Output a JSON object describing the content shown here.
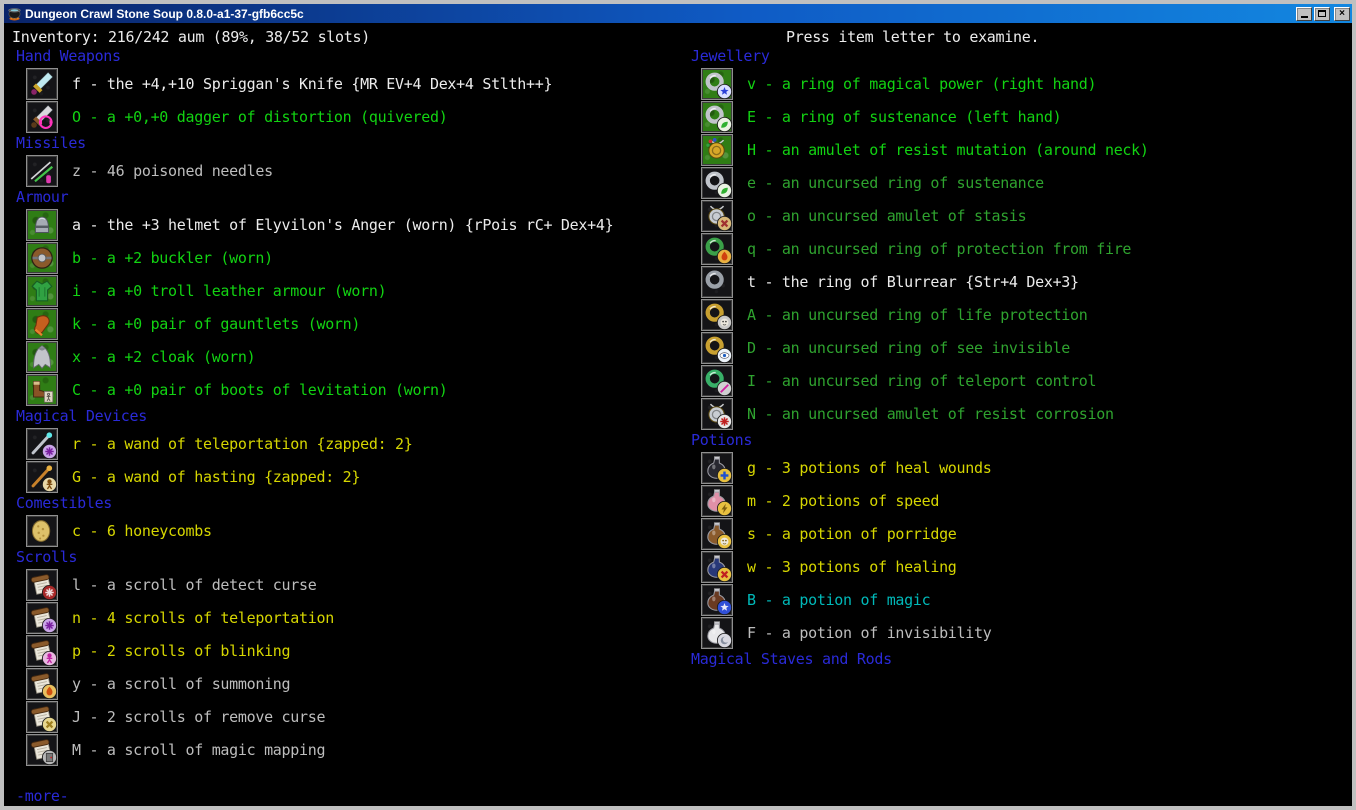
{
  "window": {
    "title": "Dungeon Crawl Stone Soup 0.8.0-a1-37-gfb6cc5c",
    "controls": {
      "minimize": "minimize",
      "maximize": "maximize",
      "close_glyph": "×"
    }
  },
  "statusbar": {
    "left": "Inventory: 216/242 aum (89%, 38/52 slots)",
    "right": "Press item letter to examine."
  },
  "palette": {
    "blue": "#2a2ad8",
    "white": "#ececec",
    "lightgrey": "#bdbdbd",
    "lightgreen": "#12d312",
    "green": "#2fa32f",
    "yellow": "#d6d600",
    "cyan": "#00b9b9",
    "titlebar_left": "#0a246a",
    "titlebar_right": "#1287e0",
    "equipped_tile_bg": "#2f7d15"
  },
  "columns": [
    {
      "sections": [
        {
          "header": "Hand Weapons",
          "items": [
            {
              "letter": "f",
              "text": "f - the +4,+10 Spriggan's Knife {MR EV+4 Dex+4 Stlth++}",
              "color": "white",
              "equipped": false,
              "icon": "spriggan_knife"
            },
            {
              "letter": "O",
              "text": "O - a +0,+0 dagger of distortion (quivered)",
              "color": "lightgreen",
              "equipped": false,
              "icon": "dagger_distortion"
            }
          ]
        },
        {
          "header": "Missiles",
          "items": [
            {
              "letter": "z",
              "text": "z - 46 poisoned needles",
              "color": "lightgrey",
              "equipped": false,
              "icon": "needles"
            }
          ]
        },
        {
          "header": "Armour",
          "items": [
            {
              "letter": "a",
              "text": "a - the +3 helmet of Elyvilon's Anger (worn) {rPois rC+ Dex+4}",
              "color": "white",
              "equipped": true,
              "icon": "helmet"
            },
            {
              "letter": "b",
              "text": "b - a +2 buckler (worn)",
              "color": "lightgreen",
              "equipped": true,
              "icon": "buckler"
            },
            {
              "letter": "i",
              "text": "i - a +0 troll leather armour (worn)",
              "color": "lightgreen",
              "equipped": true,
              "icon": "troll_armour"
            },
            {
              "letter": "k",
              "text": "k - a +0 pair of gauntlets (worn)",
              "color": "lightgreen",
              "equipped": true,
              "icon": "gauntlets"
            },
            {
              "letter": "x",
              "text": "x - a +2 cloak (worn)",
              "color": "lightgreen",
              "equipped": true,
              "icon": "cloak"
            },
            {
              "letter": "C",
              "text": "C - a +0 pair of boots of levitation (worn)",
              "color": "lightgreen",
              "equipped": true,
              "icon": "boots"
            }
          ]
        },
        {
          "header": "Magical Devices",
          "items": [
            {
              "letter": "r",
              "text": "r - a wand of teleportation {zapped: 2}",
              "color": "yellow",
              "equipped": false,
              "icon": "wand_teleport"
            },
            {
              "letter": "G",
              "text": "G - a wand of hasting {zapped: 2}",
              "color": "yellow",
              "equipped": false,
              "icon": "wand_hasting"
            }
          ]
        },
        {
          "header": "Comestibles",
          "items": [
            {
              "letter": "c",
              "text": "c - 6 honeycombs",
              "color": "yellow",
              "equipped": false,
              "icon": "honeycomb"
            }
          ]
        },
        {
          "header": "Scrolls",
          "items": [
            {
              "letter": "l",
              "text": "l - a scroll of detect curse",
              "color": "lightgrey",
              "equipped": false,
              "icon": "scroll_detect_curse"
            },
            {
              "letter": "n",
              "text": "n - 4 scrolls of teleportation",
              "color": "yellow",
              "equipped": false,
              "icon": "scroll_teleport"
            },
            {
              "letter": "p",
              "text": "p - 2 scrolls of blinking",
              "color": "yellow",
              "equipped": false,
              "icon": "scroll_blinking"
            },
            {
              "letter": "y",
              "text": "y - a scroll of summoning",
              "color": "lightgrey",
              "equipped": false,
              "icon": "scroll_summoning"
            },
            {
              "letter": "J",
              "text": "J - 2 scrolls of remove curse",
              "color": "lightgrey",
              "equipped": false,
              "icon": "scroll_remove_curse"
            },
            {
              "letter": "M",
              "text": "M - a scroll of magic mapping",
              "color": "lightgrey",
              "equipped": false,
              "icon": "scroll_magic_mapping"
            }
          ]
        }
      ],
      "footer": "-more-"
    },
    {
      "sections": [
        {
          "header": "Jewellery",
          "items": [
            {
              "letter": "v",
              "text": "v - a ring of magical power (right hand)",
              "color": "lightgreen",
              "equipped": true,
              "icon": "ring_magical_power"
            },
            {
              "letter": "E",
              "text": "E - a ring of sustenance (left hand)",
              "color": "lightgreen",
              "equipped": true,
              "icon": "ring_sustenance"
            },
            {
              "letter": "H",
              "text": "H - an amulet of resist mutation (around neck)",
              "color": "lightgreen",
              "equipped": true,
              "icon": "amulet_resist_mutation"
            },
            {
              "letter": "e",
              "text": "e - an uncursed ring of sustenance",
              "color": "green",
              "equipped": false,
              "icon": "ring_sustenance"
            },
            {
              "letter": "o",
              "text": "o - an uncursed amulet of stasis",
              "color": "green",
              "equipped": false,
              "icon": "amulet_stasis"
            },
            {
              "letter": "q",
              "text": "q - an uncursed ring of protection from fire",
              "color": "green",
              "equipped": false,
              "icon": "ring_fire"
            },
            {
              "letter": "t",
              "text": "t - the ring of Blurrear {Str+4 Dex+3}",
              "color": "white",
              "equipped": false,
              "icon": "ring_blurrear"
            },
            {
              "letter": "A",
              "text": "A - an uncursed ring of life protection",
              "color": "green",
              "equipped": false,
              "icon": "ring_life_protection"
            },
            {
              "letter": "D",
              "text": "D - an uncursed ring of see invisible",
              "color": "green",
              "equipped": false,
              "icon": "ring_see_invisible"
            },
            {
              "letter": "I",
              "text": "I - an uncursed ring of teleport control",
              "color": "green",
              "equipped": false,
              "icon": "ring_teleport_control"
            },
            {
              "letter": "N",
              "text": "N - an uncursed amulet of resist corrosion",
              "color": "green",
              "equipped": false,
              "icon": "amulet_resist_corrosion"
            }
          ]
        },
        {
          "header": "Potions",
          "items": [
            {
              "letter": "g",
              "text": "g - 3 potions of heal wounds",
              "color": "yellow",
              "equipped": false,
              "icon": "potion_heal_wounds"
            },
            {
              "letter": "m",
              "text": "m - 2 potions of speed",
              "color": "yellow",
              "equipped": false,
              "icon": "potion_speed"
            },
            {
              "letter": "s",
              "text": "s - a potion of porridge",
              "color": "yellow",
              "equipped": false,
              "icon": "potion_porridge"
            },
            {
              "letter": "w",
              "text": "w - 3 potions of healing",
              "color": "yellow",
              "equipped": false,
              "icon": "potion_healing"
            },
            {
              "letter": "B",
              "text": "B - a potion of magic",
              "color": "cyan",
              "equipped": false,
              "icon": "potion_magic"
            },
            {
              "letter": "F",
              "text": "F - a potion of invisibility",
              "color": "lightgrey",
              "equipped": false,
              "icon": "potion_invisibility"
            }
          ]
        },
        {
          "header": "Magical Staves and Rods",
          "items": []
        }
      ],
      "footer": null
    }
  ],
  "icons": {
    "spriggan_knife": {
      "base": "blade",
      "blade": "#bfe9f0",
      "hilt": "#c9a227",
      "pommel": "#8a2468"
    },
    "dagger_distortion": {
      "base": "blade",
      "blade": "#d8d8dc",
      "hilt": "#8a5a2b",
      "pommel": "#5a3a1a",
      "overlay": "distortion"
    },
    "needles": {
      "base": "needles"
    },
    "helmet": {
      "base": "helmet"
    },
    "buckler": {
      "base": "buckler"
    },
    "troll_armour": {
      "base": "vest"
    },
    "gauntlets": {
      "base": "glove"
    },
    "cloak": {
      "base": "cloak"
    },
    "boots": {
      "base": "boots"
    },
    "wand_teleport": {
      "base": "wand",
      "shaft": "#c0c4cc",
      "tip": "#5fe8e8",
      "badge": {
        "bg": "#caa6e8",
        "shape": "burst",
        "fg": "#7a1fa0"
      }
    },
    "wand_hasting": {
      "base": "wand",
      "shaft": "#c8812a",
      "tip": "#e8b040",
      "badge": {
        "bg": "#e8d8a8",
        "shape": "person",
        "fg": "#7a4a10"
      }
    },
    "honeycomb": {
      "base": "lump"
    },
    "scroll_detect_curse": {
      "base": "scroll",
      "badge": {
        "bg": "#a82828",
        "shape": "burst",
        "fg": "#f0dede"
      }
    },
    "scroll_teleport": {
      "base": "scroll",
      "badge": {
        "bg": "#caa6e8",
        "shape": "burst",
        "fg": "#7a1fa0"
      }
    },
    "scroll_blinking": {
      "base": "scroll",
      "badge": {
        "bg": "#e8b8e0",
        "shape": "person",
        "fg": "#c020a0"
      }
    },
    "scroll_summoning": {
      "base": "scroll",
      "badge": {
        "bg": "#e8c060",
        "shape": "flame",
        "fg": "#d05010"
      }
    },
    "scroll_remove_curse": {
      "base": "scroll",
      "badge": {
        "bg": "#e8d890",
        "shape": "cross",
        "fg": "#a08020"
      }
    },
    "scroll_magic_mapping": {
      "base": "scroll",
      "badge": {
        "bg": "#b8b8b8",
        "shape": "door",
        "fg": "#7a7a7a"
      }
    },
    "ring_magical_power": {
      "base": "ring",
      "metal": "#c0c4ca",
      "badge": {
        "bg": "#d8deff",
        "shape": "star",
        "fg": "#2b3fd6"
      }
    },
    "ring_sustenance": {
      "base": "ring",
      "metal": "#c0c4ca",
      "badge": {
        "bg": "#eaf2e2",
        "shape": "leaf",
        "fg": "#30b030"
      }
    },
    "amulet_resist_mutation": {
      "base": "amulet",
      "metal": "#d8a828",
      "gems": true
    },
    "amulet_stasis": {
      "base": "amulet",
      "metal": "#c8ccd2",
      "badge": {
        "bg": "#d8b878",
        "shape": "cross",
        "fg": "#a03030"
      }
    },
    "ring_fire": {
      "base": "ring",
      "metal": "#3aa048",
      "badge": {
        "bg": "#e8b040",
        "shape": "flame",
        "fg": "#d04010"
      }
    },
    "ring_blurrear": {
      "base": "ring",
      "metal": "#9aa0a8"
    },
    "ring_life_protection": {
      "base": "ring",
      "metal": "#c8a030",
      "badge": {
        "bg": "#c8c8c8",
        "shape": "face",
        "fg": "#404040"
      }
    },
    "ring_see_invisible": {
      "base": "ring",
      "metal": "#c8a030",
      "badge": {
        "bg": "#eef4fa",
        "shape": "eye",
        "fg": "#2060c0"
      }
    },
    "ring_teleport_control": {
      "base": "ring",
      "metal": "#38b068",
      "badge": {
        "bg": "#d0d0d0",
        "shape": "line",
        "fg": "#d020a0"
      }
    },
    "amulet_resist_corrosion": {
      "base": "amulet",
      "metal": "#c8ccd2",
      "badge": {
        "bg": "#e8e8e8",
        "shape": "burst",
        "fg": "#c02020"
      }
    },
    "potion_heal_wounds": {
      "base": "potion",
      "liquid": "#282830",
      "badge": {
        "bg": "#e8c040",
        "shape": "plus",
        "fg": "#2050d0"
      }
    },
    "potion_speed": {
      "base": "potion",
      "liquid": "#e090a8",
      "badge": {
        "bg": "#e8c040",
        "shape": "bolt",
        "fg": "#806010"
      }
    },
    "potion_porridge": {
      "base": "potion",
      "liquid": "#8a5a2b",
      "badge": {
        "bg": "#e8c040",
        "shape": "face",
        "fg": "#806010"
      }
    },
    "potion_healing": {
      "base": "potion",
      "liquid": "#283878",
      "badge": {
        "bg": "#e8c040",
        "shape": "cross",
        "fg": "#c02020"
      }
    },
    "potion_magic": {
      "base": "potion",
      "liquid": "#6a3a22",
      "badge": {
        "bg": "#3050d8",
        "shape": "star",
        "fg": "#e8e8f8"
      }
    },
    "potion_invisibility": {
      "base": "potion",
      "liquid": "#e8e8ea",
      "badge": {
        "bg": "#d8d8e0",
        "shape": "moon",
        "fg": "#8890a0"
      }
    }
  }
}
